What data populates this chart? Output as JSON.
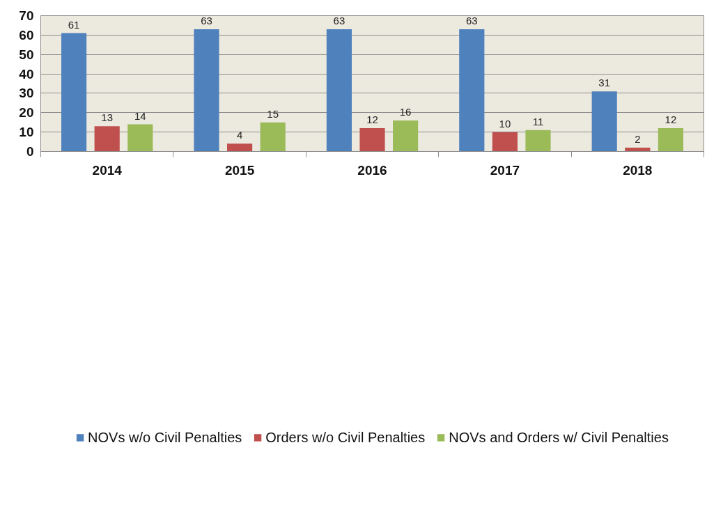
{
  "chart_data": {
    "type": "bar",
    "categories": [
      "2014",
      "2015",
      "2016",
      "2017",
      "2018"
    ],
    "series": [
      {
        "name": "NOVs w/o Civil Penalties",
        "color": "#4f81bd",
        "values": [
          61,
          63,
          63,
          63,
          31
        ]
      },
      {
        "name": "Orders w/o Civil Penalties",
        "color": "#c0504d",
        "values": [
          13,
          4,
          12,
          10,
          2
        ]
      },
      {
        "name": "NOVs and Orders w/ Civil Penalties",
        "color": "#9bbb59",
        "values": [
          14,
          15,
          16,
          11,
          12
        ]
      }
    ],
    "ylim": [
      0,
      70
    ],
    "yticks": [
      0,
      10,
      20,
      30,
      40,
      50,
      60,
      70
    ],
    "grid": "y",
    "legend": "bottom",
    "data_labels": true
  }
}
